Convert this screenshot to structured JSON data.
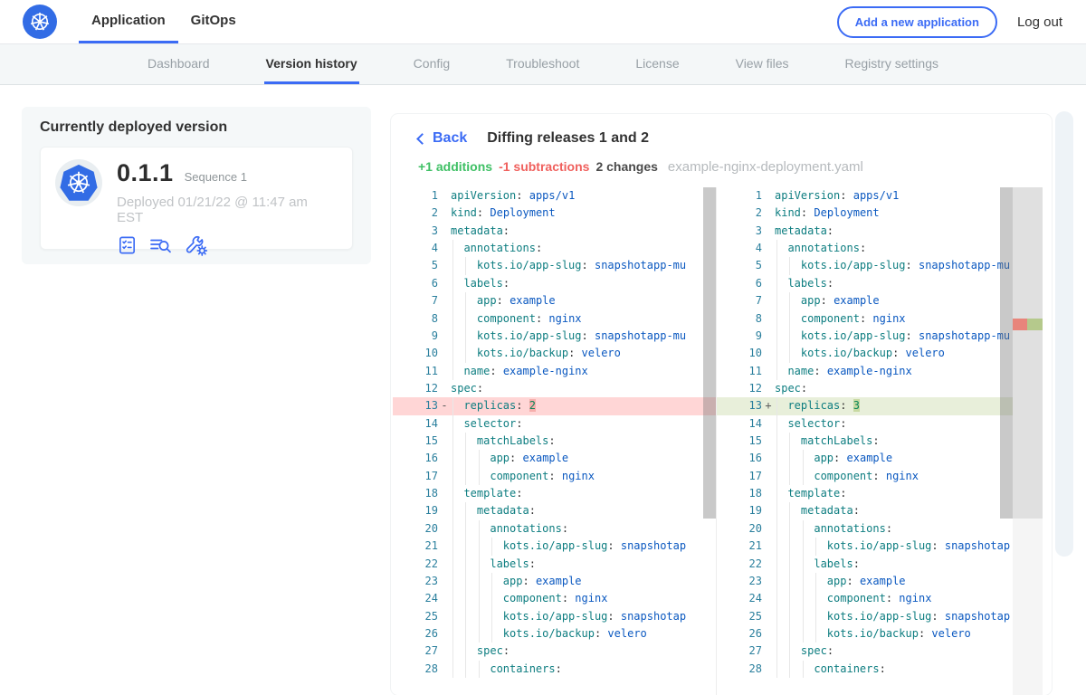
{
  "topbar": {
    "logo_icon": "kubernetes-helm-wheel-icon",
    "tabs": [
      {
        "label": "Application",
        "active": true
      },
      {
        "label": "GitOps",
        "active": false
      }
    ],
    "add_app_label": "Add a new application",
    "logout_label": "Log out"
  },
  "subnav": {
    "tabs": [
      "Dashboard",
      "Version history",
      "Config",
      "Troubleshoot",
      "License",
      "View files",
      "Registry settings"
    ],
    "active": "Version history"
  },
  "deployed_card": {
    "title": "Currently deployed version",
    "version": "0.1.1",
    "sequence": "Sequence 1",
    "deployed_at": "Deployed 01/21/22 @ 11:47 am EST",
    "icons": [
      "release-notes-icon",
      "view-logs-icon",
      "config-tools-icon"
    ]
  },
  "diff": {
    "back_label": "Back",
    "back_icon": "chevron-left-icon",
    "title": "Diffing releases 1 and 2",
    "additions_label": "+1 additions",
    "subtractions_label": "-1 subtractions",
    "changes_label": "2 changes",
    "filename": "example-nginx-deployment.yaml",
    "left_lines": [
      {
        "n": 1,
        "lvl": 0,
        "k": "apiVersion",
        "v": "apps/v1",
        "t": "s",
        "sign": "",
        "kind": "ctx",
        "hl": false
      },
      {
        "n": 2,
        "lvl": 0,
        "k": "kind",
        "v": "Deployment",
        "t": "s",
        "sign": "",
        "kind": "ctx",
        "hl": false
      },
      {
        "n": 3,
        "lvl": 0,
        "k": "metadata",
        "v": "",
        "t": "s",
        "sign": "",
        "kind": "ctx",
        "hl": false
      },
      {
        "n": 4,
        "lvl": 1,
        "k": "annotations",
        "v": "",
        "t": "s",
        "sign": "",
        "kind": "ctx",
        "hl": false
      },
      {
        "n": 5,
        "lvl": 2,
        "k": "kots.io/app-slug",
        "v": "snapshotapp-mu",
        "t": "s",
        "sign": "",
        "kind": "ctx",
        "hl": false
      },
      {
        "n": 6,
        "lvl": 1,
        "k": "labels",
        "v": "",
        "t": "s",
        "sign": "",
        "kind": "ctx",
        "hl": false
      },
      {
        "n": 7,
        "lvl": 2,
        "k": "app",
        "v": "example",
        "t": "s",
        "sign": "",
        "kind": "ctx",
        "hl": false
      },
      {
        "n": 8,
        "lvl": 2,
        "k": "component",
        "v": "nginx",
        "t": "s",
        "sign": "",
        "kind": "ctx",
        "hl": false
      },
      {
        "n": 9,
        "lvl": 2,
        "k": "kots.io/app-slug",
        "v": "snapshotapp-mu",
        "t": "s",
        "sign": "",
        "kind": "ctx",
        "hl": false
      },
      {
        "n": 10,
        "lvl": 2,
        "k": "kots.io/backup",
        "v": "velero",
        "t": "s",
        "sign": "",
        "kind": "ctx",
        "hl": false
      },
      {
        "n": 11,
        "lvl": 1,
        "k": "name",
        "v": "example-nginx",
        "t": "s",
        "sign": "",
        "kind": "ctx",
        "hl": false
      },
      {
        "n": 12,
        "lvl": 0,
        "k": "spec",
        "v": "",
        "t": "s",
        "sign": "",
        "kind": "ctx",
        "hl": false
      },
      {
        "n": 13,
        "lvl": 1,
        "k": "replicas",
        "v": "2",
        "t": "n",
        "sign": "-",
        "kind": "removed",
        "hl": true
      },
      {
        "n": 14,
        "lvl": 1,
        "k": "selector",
        "v": "",
        "t": "s",
        "sign": "",
        "kind": "ctx",
        "hl": false
      },
      {
        "n": 15,
        "lvl": 2,
        "k": "matchLabels",
        "v": "",
        "t": "s",
        "sign": "",
        "kind": "ctx",
        "hl": false
      },
      {
        "n": 16,
        "lvl": 3,
        "k": "app",
        "v": "example",
        "t": "s",
        "sign": "",
        "kind": "ctx",
        "hl": false
      },
      {
        "n": 17,
        "lvl": 3,
        "k": "component",
        "v": "nginx",
        "t": "s",
        "sign": "",
        "kind": "ctx",
        "hl": false
      },
      {
        "n": 18,
        "lvl": 1,
        "k": "template",
        "v": "",
        "t": "s",
        "sign": "",
        "kind": "ctx",
        "hl": false
      },
      {
        "n": 19,
        "lvl": 2,
        "k": "metadata",
        "v": "",
        "t": "s",
        "sign": "",
        "kind": "ctx",
        "hl": false
      },
      {
        "n": 20,
        "lvl": 3,
        "k": "annotations",
        "v": "",
        "t": "s",
        "sign": "",
        "kind": "ctx",
        "hl": false
      },
      {
        "n": 21,
        "lvl": 4,
        "k": "kots.io/app-slug",
        "v": "snapshotap",
        "t": "s",
        "sign": "",
        "kind": "ctx",
        "hl": false
      },
      {
        "n": 22,
        "lvl": 3,
        "k": "labels",
        "v": "",
        "t": "s",
        "sign": "",
        "kind": "ctx",
        "hl": false
      },
      {
        "n": 23,
        "lvl": 4,
        "k": "app",
        "v": "example",
        "t": "s",
        "sign": "",
        "kind": "ctx",
        "hl": false
      },
      {
        "n": 24,
        "lvl": 4,
        "k": "component",
        "v": "nginx",
        "t": "s",
        "sign": "",
        "kind": "ctx",
        "hl": false
      },
      {
        "n": 25,
        "lvl": 4,
        "k": "kots.io/app-slug",
        "v": "snapshotap",
        "t": "s",
        "sign": "",
        "kind": "ctx",
        "hl": false
      },
      {
        "n": 26,
        "lvl": 4,
        "k": "kots.io/backup",
        "v": "velero",
        "t": "s",
        "sign": "",
        "kind": "ctx",
        "hl": false
      },
      {
        "n": 27,
        "lvl": 2,
        "k": "spec",
        "v": "",
        "t": "s",
        "sign": "",
        "kind": "ctx",
        "hl": false
      },
      {
        "n": 28,
        "lvl": 3,
        "k": "containers",
        "v": "",
        "t": "s",
        "sign": "",
        "kind": "ctx",
        "hl": false
      }
    ],
    "right_lines": [
      {
        "n": 1,
        "lvl": 0,
        "k": "apiVersion",
        "v": "apps/v1",
        "t": "s",
        "sign": "",
        "kind": "ctx",
        "hl": false
      },
      {
        "n": 2,
        "lvl": 0,
        "k": "kind",
        "v": "Deployment",
        "t": "s",
        "sign": "",
        "kind": "ctx",
        "hl": false
      },
      {
        "n": 3,
        "lvl": 0,
        "k": "metadata",
        "v": "",
        "t": "s",
        "sign": "",
        "kind": "ctx",
        "hl": false
      },
      {
        "n": 4,
        "lvl": 1,
        "k": "annotations",
        "v": "",
        "t": "s",
        "sign": "",
        "kind": "ctx",
        "hl": false
      },
      {
        "n": 5,
        "lvl": 2,
        "k": "kots.io/app-slug",
        "v": "snapshotapp-mu",
        "t": "s",
        "sign": "",
        "kind": "ctx",
        "hl": false
      },
      {
        "n": 6,
        "lvl": 1,
        "k": "labels",
        "v": "",
        "t": "s",
        "sign": "",
        "kind": "ctx",
        "hl": false
      },
      {
        "n": 7,
        "lvl": 2,
        "k": "app",
        "v": "example",
        "t": "s",
        "sign": "",
        "kind": "ctx",
        "hl": false
      },
      {
        "n": 8,
        "lvl": 2,
        "k": "component",
        "v": "nginx",
        "t": "s",
        "sign": "",
        "kind": "ctx",
        "hl": false
      },
      {
        "n": 9,
        "lvl": 2,
        "k": "kots.io/app-slug",
        "v": "snapshotapp-mu",
        "t": "s",
        "sign": "",
        "kind": "ctx",
        "hl": false
      },
      {
        "n": 10,
        "lvl": 2,
        "k": "kots.io/backup",
        "v": "velero",
        "t": "s",
        "sign": "",
        "kind": "ctx",
        "hl": false
      },
      {
        "n": 11,
        "lvl": 1,
        "k": "name",
        "v": "example-nginx",
        "t": "s",
        "sign": "",
        "kind": "ctx",
        "hl": false
      },
      {
        "n": 12,
        "lvl": 0,
        "k": "spec",
        "v": "",
        "t": "s",
        "sign": "",
        "kind": "ctx",
        "hl": false
      },
      {
        "n": 13,
        "lvl": 1,
        "k": "replicas",
        "v": "3",
        "t": "n",
        "sign": "+",
        "kind": "added",
        "hl": true
      },
      {
        "n": 14,
        "lvl": 1,
        "k": "selector",
        "v": "",
        "t": "s",
        "sign": "",
        "kind": "ctx",
        "hl": false
      },
      {
        "n": 15,
        "lvl": 2,
        "k": "matchLabels",
        "v": "",
        "t": "s",
        "sign": "",
        "kind": "ctx",
        "hl": false
      },
      {
        "n": 16,
        "lvl": 3,
        "k": "app",
        "v": "example",
        "t": "s",
        "sign": "",
        "kind": "ctx",
        "hl": false
      },
      {
        "n": 17,
        "lvl": 3,
        "k": "component",
        "v": "nginx",
        "t": "s",
        "sign": "",
        "kind": "ctx",
        "hl": false
      },
      {
        "n": 18,
        "lvl": 1,
        "k": "template",
        "v": "",
        "t": "s",
        "sign": "",
        "kind": "ctx",
        "hl": false
      },
      {
        "n": 19,
        "lvl": 2,
        "k": "metadata",
        "v": "",
        "t": "s",
        "sign": "",
        "kind": "ctx",
        "hl": false
      },
      {
        "n": 20,
        "lvl": 3,
        "k": "annotations",
        "v": "",
        "t": "s",
        "sign": "",
        "kind": "ctx",
        "hl": false
      },
      {
        "n": 21,
        "lvl": 4,
        "k": "kots.io/app-slug",
        "v": "snapshotap",
        "t": "s",
        "sign": "",
        "kind": "ctx",
        "hl": false
      },
      {
        "n": 22,
        "lvl": 3,
        "k": "labels",
        "v": "",
        "t": "s",
        "sign": "",
        "kind": "ctx",
        "hl": false
      },
      {
        "n": 23,
        "lvl": 4,
        "k": "app",
        "v": "example",
        "t": "s",
        "sign": "",
        "kind": "ctx",
        "hl": false
      },
      {
        "n": 24,
        "lvl": 4,
        "k": "component",
        "v": "nginx",
        "t": "s",
        "sign": "",
        "kind": "ctx",
        "hl": false
      },
      {
        "n": 25,
        "lvl": 4,
        "k": "kots.io/app-slug",
        "v": "snapshotap",
        "t": "s",
        "sign": "",
        "kind": "ctx",
        "hl": false
      },
      {
        "n": 26,
        "lvl": 4,
        "k": "kots.io/backup",
        "v": "velero",
        "t": "s",
        "sign": "",
        "kind": "ctx",
        "hl": false
      },
      {
        "n": 27,
        "lvl": 2,
        "k": "spec",
        "v": "",
        "t": "s",
        "sign": "",
        "kind": "ctx",
        "hl": false
      },
      {
        "n": 28,
        "lvl": 3,
        "k": "containers",
        "v": "",
        "t": "s",
        "sign": "",
        "kind": "ctx",
        "hl": false
      }
    ]
  },
  "colors": {
    "accent_blue": "#3b6bf5",
    "k8s_blue": "#326ce5",
    "additions_green": "#3fc065",
    "subtractions_red": "#f0605d",
    "removed_row": "#ffd6d6",
    "added_row": "#e8efda",
    "removed_char": "#f6aeac",
    "added_char": "#c8d9a2",
    "yaml_key": "#0d7d80",
    "yaml_value": "#0a58c0",
    "yaml_number": "#098658",
    "line_number": "#2a7f9d"
  }
}
